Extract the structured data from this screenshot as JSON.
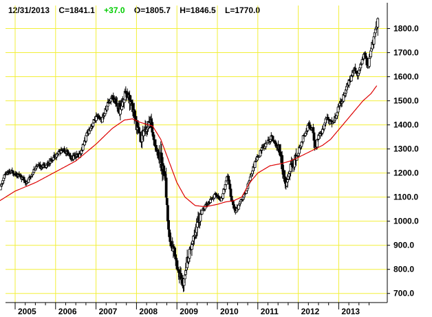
{
  "header": {
    "date": "12/31/2013",
    "close": "C=1841.1",
    "change": "+37.0",
    "open": "O=1805.7",
    "high": "H=1846.5",
    "low": "L=1770.0"
  },
  "colors": {
    "background": "#ffffff",
    "grid": "#f2ef38",
    "candle": "#000000",
    "moving_average": "#dd0000",
    "change_text": "#00cc00"
  },
  "chart_data": {
    "type": "candlestick",
    "title": "",
    "xlabel": "",
    "ylabel": "",
    "grid": true,
    "x_tick_labels": [
      "2005",
      "2006",
      "2007",
      "2008",
      "2009",
      "2010",
      "2011",
      "2012",
      "2013"
    ],
    "y_tick_labels": [
      "700.0",
      "800.0",
      "900.0",
      "1000.0",
      "1100.0",
      "1200.0",
      "1300.0",
      "1400.0",
      "1500.0",
      "1600.0",
      "1700.0",
      "1800.0"
    ],
    "y_ticks": [
      700,
      800,
      900,
      1000,
      1100,
      1200,
      1300,
      1400,
      1500,
      1600,
      1700,
      1800
    ],
    "ylim": [
      665,
      1870
    ],
    "x_range": [
      2004.58,
      2014.0
    ],
    "year_starts": [
      2005,
      2006,
      2007,
      2008,
      2009,
      2010,
      2011,
      2012,
      2013
    ],
    "close_path": [
      [
        2004.62,
        1130
      ],
      [
        2004.75,
        1195
      ],
      [
        2004.95,
        1205
      ],
      [
        2005.1,
        1190
      ],
      [
        2005.3,
        1160
      ],
      [
        2005.5,
        1225
      ],
      [
        2005.75,
        1230
      ],
      [
        2006.0,
        1275
      ],
      [
        2006.2,
        1300
      ],
      [
        2006.4,
        1265
      ],
      [
        2006.6,
        1275
      ],
      [
        2006.8,
        1370
      ],
      [
        2007.0,
        1430
      ],
      [
        2007.15,
        1420
      ],
      [
        2007.3,
        1490
      ],
      [
        2007.4,
        1520
      ],
      [
        2007.5,
        1490
      ],
      [
        2007.6,
        1460
      ],
      [
        2007.75,
        1550
      ],
      [
        2007.9,
        1470
      ],
      [
        2008.0,
        1400
      ],
      [
        2008.1,
        1340
      ],
      [
        2008.2,
        1380
      ],
      [
        2008.35,
        1410
      ],
      [
        2008.5,
        1290
      ],
      [
        2008.6,
        1260
      ],
      [
        2008.7,
        1200
      ],
      [
        2008.8,
        950
      ],
      [
        2008.85,
        900
      ],
      [
        2008.95,
        870
      ],
      [
        2009.05,
        780
      ],
      [
        2009.15,
        735
      ],
      [
        2009.2,
        800
      ],
      [
        2009.35,
        900
      ],
      [
        2009.5,
        990
      ],
      [
        2009.65,
        1050
      ],
      [
        2009.8,
        1080
      ],
      [
        2009.95,
        1110
      ],
      [
        2010.1,
        1090
      ],
      [
        2010.25,
        1190
      ],
      [
        2010.35,
        1090
      ],
      [
        2010.45,
        1040
      ],
      [
        2010.55,
        1070
      ],
      [
        2010.7,
        1120
      ],
      [
        2010.8,
        1180
      ],
      [
        2010.95,
        1250
      ],
      [
        2011.1,
        1300
      ],
      [
        2011.25,
        1330
      ],
      [
        2011.35,
        1350
      ],
      [
        2011.45,
        1310
      ],
      [
        2011.55,
        1300
      ],
      [
        2011.62,
        1200
      ],
      [
        2011.7,
        1140
      ],
      [
        2011.8,
        1220
      ],
      [
        2011.95,
        1260
      ],
      [
        2012.1,
        1340
      ],
      [
        2012.25,
        1400
      ],
      [
        2012.35,
        1380
      ],
      [
        2012.42,
        1300
      ],
      [
        2012.5,
        1350
      ],
      [
        2012.6,
        1380
      ],
      [
        2012.7,
        1430
      ],
      [
        2012.8,
        1410
      ],
      [
        2012.9,
        1420
      ],
      [
        2013.0,
        1480
      ],
      [
        2013.1,
        1510
      ],
      [
        2013.2,
        1560
      ],
      [
        2013.3,
        1590
      ],
      [
        2013.4,
        1640
      ],
      [
        2013.45,
        1600
      ],
      [
        2013.55,
        1660
      ],
      [
        2013.65,
        1690
      ],
      [
        2013.72,
        1640
      ],
      [
        2013.8,
        1710
      ],
      [
        2013.9,
        1780
      ],
      [
        2013.97,
        1841
      ]
    ],
    "moving_average": [
      [
        2004.62,
        1085
      ],
      [
        2005.0,
        1125
      ],
      [
        2005.5,
        1160
      ],
      [
        2006.0,
        1205
      ],
      [
        2006.5,
        1250
      ],
      [
        2007.0,
        1320
      ],
      [
        2007.4,
        1385
      ],
      [
        2007.7,
        1420
      ],
      [
        2007.9,
        1425
      ],
      [
        2008.1,
        1410
      ],
      [
        2008.4,
        1395
      ],
      [
        2008.6,
        1340
      ],
      [
        2008.8,
        1250
      ],
      [
        2009.0,
        1160
      ],
      [
        2009.2,
        1100
      ],
      [
        2009.45,
        1065
      ],
      [
        2009.7,
        1060
      ],
      [
        2010.0,
        1070
      ],
      [
        2010.2,
        1080
      ],
      [
        2010.4,
        1085
      ],
      [
        2010.6,
        1100
      ],
      [
        2010.8,
        1160
      ],
      [
        2011.0,
        1200
      ],
      [
        2011.3,
        1230
      ],
      [
        2011.6,
        1240
      ],
      [
        2011.8,
        1250
      ],
      [
        2012.0,
        1265
      ],
      [
        2012.3,
        1290
      ],
      [
        2012.6,
        1315
      ],
      [
        2012.8,
        1340
      ],
      [
        2013.0,
        1380
      ],
      [
        2013.3,
        1440
      ],
      [
        2013.6,
        1500
      ],
      [
        2013.8,
        1530
      ],
      [
        2013.95,
        1565
      ]
    ],
    "last_bar": {
      "date": "12/31/2013",
      "close": 1841.1,
      "change": 37.0,
      "open": 1805.7,
      "high": 1846.5,
      "low": 1770.0
    }
  }
}
